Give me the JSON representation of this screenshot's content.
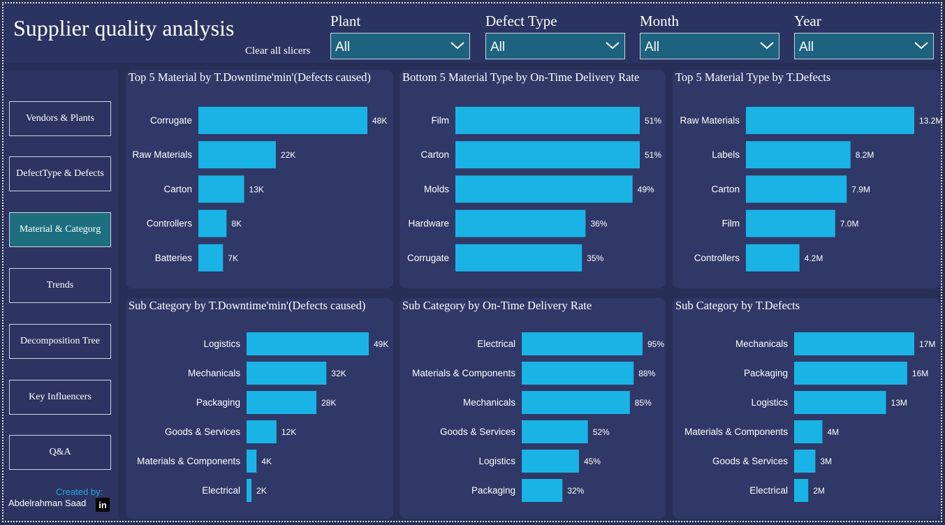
{
  "header": {
    "title": "Supplier quality analysis",
    "clear_label": "Clear all slicers"
  },
  "slicers": [
    {
      "label": "Plant",
      "value": "All"
    },
    {
      "label": "Defect Type",
      "value": "All"
    },
    {
      "label": "Month",
      "value": "All"
    },
    {
      "label": "Year",
      "value": "All"
    }
  ],
  "nav": {
    "items": [
      {
        "label": "Vendors & Plants"
      },
      {
        "label": "DefectType & Defects"
      },
      {
        "label": "Material & Categorg"
      },
      {
        "label": "Trends"
      },
      {
        "label": "Decomposition Tree"
      },
      {
        "label": "Key Influencers"
      },
      {
        "label": "Q&A"
      }
    ],
    "active_index": 2
  },
  "footer": {
    "created_by": "Created by:",
    "author": "Abdelrahman Saad",
    "linkedin": "in"
  },
  "colors": {
    "background": "#282f57",
    "card": "#2f3866",
    "bar": "#1ab3e6",
    "slicer": "#1d627f"
  },
  "chart_data": [
    {
      "type": "bar",
      "orientation": "horizontal",
      "title": "Top 5 Material by T.Downtime'min'(Defects caused)",
      "categories": [
        "Corrugate",
        "Raw Materials",
        "Carton",
        "Controllers",
        "Batteries"
      ],
      "values": [
        48,
        22,
        13,
        8,
        7
      ],
      "labels": [
        "48K",
        "22K",
        "13K",
        "8K",
        "7K"
      ],
      "unit": "K"
    },
    {
      "type": "bar",
      "orientation": "horizontal",
      "title": "Bottom 5 Material Type by On-Time Delivery Rate",
      "categories": [
        "Film",
        "Carton",
        "Molds",
        "Hardware",
        "Corrugate"
      ],
      "values": [
        51,
        51,
        49,
        36,
        35
      ],
      "labels": [
        "51%",
        "51%",
        "49%",
        "36%",
        "35%"
      ],
      "unit": "%"
    },
    {
      "type": "bar",
      "orientation": "horizontal",
      "title": "Top 5 Material Type by T.Defects",
      "categories": [
        "Raw Materials",
        "Labels",
        "Carton",
        "Film",
        "Controllers"
      ],
      "values": [
        13.2,
        8.2,
        7.9,
        7.0,
        4.2
      ],
      "labels": [
        "13.2M",
        "8.2M",
        "7.9M",
        "7.0M",
        "4.2M"
      ],
      "unit": "M"
    },
    {
      "type": "bar",
      "orientation": "horizontal",
      "title": "Sub Category by T.Downtime'min'(Defects caused)",
      "categories": [
        "Logistics",
        "Mechanicals",
        "Packaging",
        "Goods & Services",
        "Materials & Components",
        "Electrical"
      ],
      "values": [
        49,
        32,
        28,
        12,
        4,
        2
      ],
      "labels": [
        "49K",
        "32K",
        "28K",
        "12K",
        "4K",
        "2K"
      ],
      "unit": "K"
    },
    {
      "type": "bar",
      "orientation": "horizontal",
      "title": "Sub Category by On-Time Delivery Rate",
      "categories": [
        "Electrical",
        "Materials & Components",
        "Mechanicals",
        "Goods & Services",
        "Logistics",
        "Packaging"
      ],
      "values": [
        95,
        88,
        85,
        52,
        45,
        32
      ],
      "labels": [
        "95%",
        "88%",
        "85%",
        "52%",
        "45%",
        "32%"
      ],
      "unit": "%"
    },
    {
      "type": "bar",
      "orientation": "horizontal",
      "title": "Sub Category by T.Defects",
      "categories": [
        "Mechanicals",
        "Packaging",
        "Logistics",
        "Materials & Components",
        "Goods & Services",
        "Electrical"
      ],
      "values": [
        17,
        16,
        13,
        4,
        3,
        2
      ],
      "labels": [
        "17M",
        "16M",
        "13M",
        "4M",
        "3M",
        "2M"
      ],
      "unit": "M"
    }
  ]
}
